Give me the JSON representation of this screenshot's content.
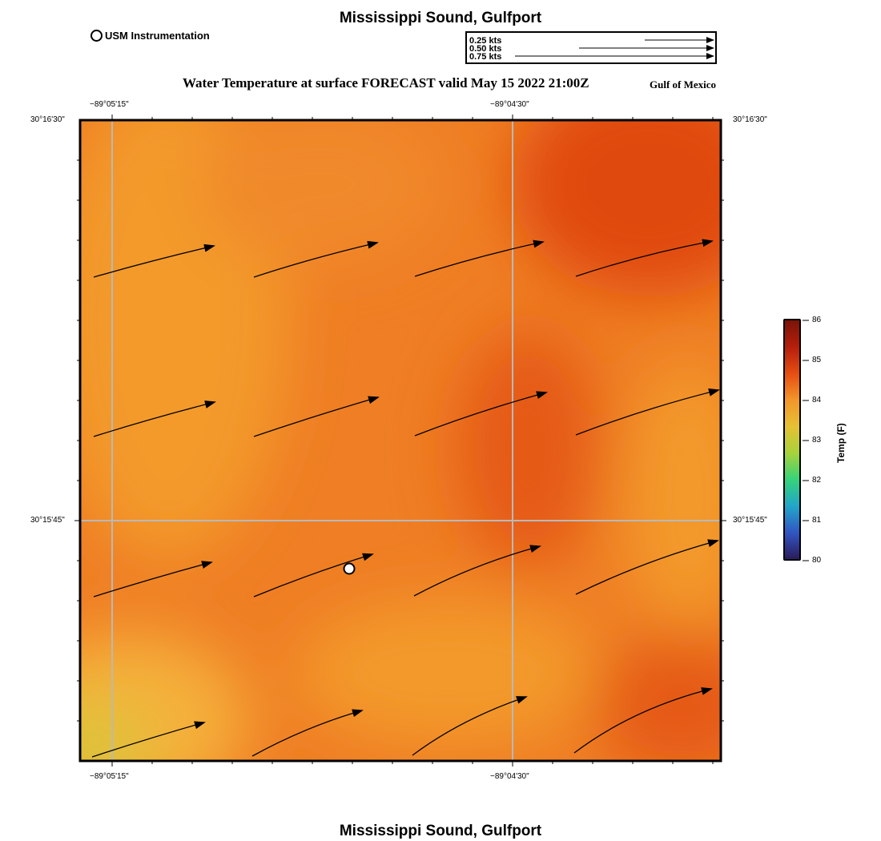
{
  "header": {
    "title": "Mississippi Sound, Gulfport",
    "subtitle": "Water Temperature at surface FORECAST valid May 15 2022 21:00Z",
    "region": "Gulf of Mexico"
  },
  "footer": {
    "title": "Mississippi Sound, Gulfport"
  },
  "legend": {
    "instrument_label": "USM Instrumentation"
  },
  "current_scale": {
    "labels": [
      "0.25 kts",
      "0.50 kts",
      "0.75 kts"
    ],
    "speeds_kts": [
      0.25,
      0.5,
      0.75
    ]
  },
  "map": {
    "lon_ticks": [
      "−89°05'15\"",
      "−89°04'30\""
    ],
    "lat_ticks": [
      "30°16'30\"",
      "30°15'45\""
    ],
    "colors": {
      "dark": "#e04a0c",
      "mid": "#ef7a22",
      "light": "#f39a2c",
      "yellow": "#e2c63a",
      "grid": "#b9b9b9"
    }
  },
  "colorbar": {
    "label": "Temp (F)",
    "ticks": [
      "80",
      "81",
      "82",
      "83",
      "84",
      "85",
      "86"
    ],
    "min": 80,
    "max": 86,
    "stops": [
      "#2b1c5c",
      "#3156c2",
      "#22a6c9",
      "#36d37a",
      "#a8d23a",
      "#e6c134",
      "#f2962a",
      "#e54d12",
      "#b51e0c",
      "#7a1408"
    ]
  }
}
